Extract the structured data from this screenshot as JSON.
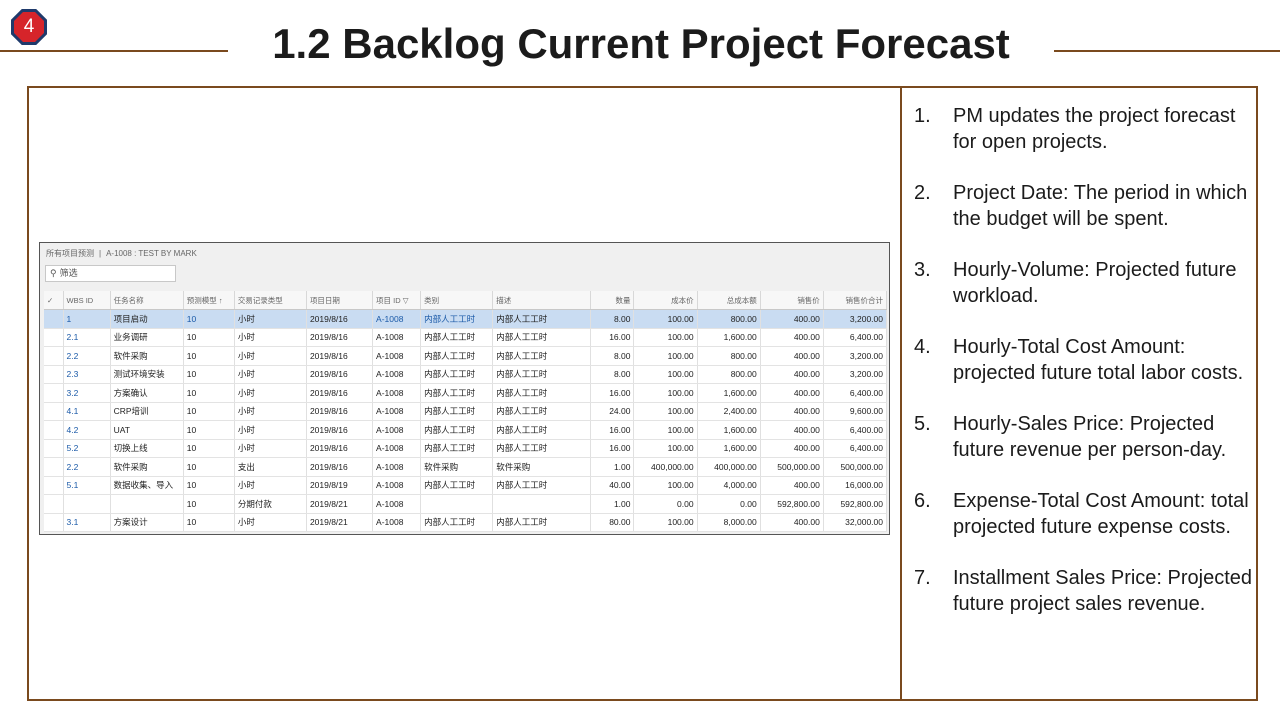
{
  "slide": {
    "badge": "4",
    "title": "1.2 Backlog Current Project Forecast",
    "colors": {
      "accent_line": "#7a4a1e",
      "badge_fill": "#d6242a",
      "badge_border": "#1f3a6b",
      "link": "#1b5aa8",
      "selected_row": "#c9dcf2"
    }
  },
  "screen": {
    "breadcrumb_root": "所有项目预测",
    "breadcrumb_sep": "|",
    "breadcrumb_current": "A-1008 : TEST BY MARK",
    "filter_placeholder": "筛选",
    "filter_icon": "search-icon",
    "columns": [
      "WBS ID",
      "任务名称",
      "预测模型 ↑",
      "交易记录类型",
      "项目日期",
      "项目 ID ▽",
      "类别",
      "描述",
      "数量",
      "成本价",
      "总成本额",
      "销售价",
      "销售价合计"
    ],
    "rows": [
      [
        "1",
        "项目启动",
        "10",
        "小时",
        "2019/8/16",
        "A-1008",
        "内部人工工时",
        "内部人工工时",
        "8.00",
        "100.00",
        "800.00",
        "400.00",
        "3,200.00"
      ],
      [
        "2.1",
        "业务调研",
        "10",
        "小时",
        "2019/8/16",
        "A-1008",
        "内部人工工时",
        "内部人工工时",
        "16.00",
        "100.00",
        "1,600.00",
        "400.00",
        "6,400.00"
      ],
      [
        "2.2",
        "软件采购",
        "10",
        "小时",
        "2019/8/16",
        "A-1008",
        "内部人工工时",
        "内部人工工时",
        "8.00",
        "100.00",
        "800.00",
        "400.00",
        "3,200.00"
      ],
      [
        "2.3",
        "测试环境安装",
        "10",
        "小时",
        "2019/8/16",
        "A-1008",
        "内部人工工时",
        "内部人工工时",
        "8.00",
        "100.00",
        "800.00",
        "400.00",
        "3,200.00"
      ],
      [
        "3.2",
        "方案确认",
        "10",
        "小时",
        "2019/8/16",
        "A-1008",
        "内部人工工时",
        "内部人工工时",
        "16.00",
        "100.00",
        "1,600.00",
        "400.00",
        "6,400.00"
      ],
      [
        "4.1",
        "CRP培训",
        "10",
        "小时",
        "2019/8/16",
        "A-1008",
        "内部人工工时",
        "内部人工工时",
        "24.00",
        "100.00",
        "2,400.00",
        "400.00",
        "9,600.00"
      ],
      [
        "4.2",
        "UAT",
        "10",
        "小时",
        "2019/8/16",
        "A-1008",
        "内部人工工时",
        "内部人工工时",
        "16.00",
        "100.00",
        "1,600.00",
        "400.00",
        "6,400.00"
      ],
      [
        "5.2",
        "切换上线",
        "10",
        "小时",
        "2019/8/16",
        "A-1008",
        "内部人工工时",
        "内部人工工时",
        "16.00",
        "100.00",
        "1,600.00",
        "400.00",
        "6,400.00"
      ],
      [
        "2.2",
        "软件采购",
        "10",
        "支出",
        "2019/8/16",
        "A-1008",
        "软件采购",
        "软件采购",
        "1.00",
        "400,000.00",
        "400,000.00",
        "500,000.00",
        "500,000.00"
      ],
      [
        "5.1",
        "数据收集、导入",
        "10",
        "小时",
        "2019/8/19",
        "A-1008",
        "内部人工工时",
        "内部人工工时",
        "40.00",
        "100.00",
        "4,000.00",
        "400.00",
        "16,000.00"
      ],
      [
        "",
        "",
        "10",
        "分期付款",
        "2019/8/21",
        "A-1008",
        "",
        "",
        "1.00",
        "0.00",
        "0.00",
        "592,800.00",
        "592,800.00"
      ],
      [
        "3.1",
        "方案设计",
        "10",
        "小时",
        "2019/8/21",
        "A-1008",
        "内部人工工时",
        "内部人工工时",
        "80.00",
        "100.00",
        "8,000.00",
        "400.00",
        "32,000.00"
      ]
    ]
  },
  "notes": [
    {
      "num": "1.",
      "text": "PM updates the project forecast for open projects."
    },
    {
      "num": "2.",
      "text": "Project Date: The period in which the budget will be spent."
    },
    {
      "num": "3.",
      "text": "Hourly-Volume:  Projected future workload."
    },
    {
      "num": "4.",
      "text": "Hourly-Total Cost Amount: projected future total labor costs."
    },
    {
      "num": "5.",
      "text": "Hourly-Sales Price: Projected future revenue per person-day."
    },
    {
      "num": "6.",
      "text": "Expense-Total Cost Amount: total projected future expense costs."
    },
    {
      "num": "7.",
      "text": "Installment Sales Price: Projected future project sales revenue."
    }
  ]
}
